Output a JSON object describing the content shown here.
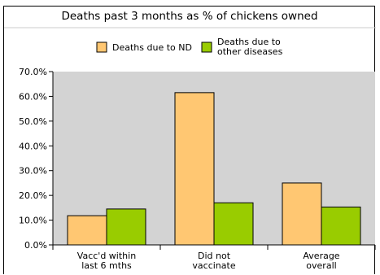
{
  "chart_data": {
    "type": "bar",
    "title": "Deaths past 3 months as % of chickens owned",
    "categories": [
      [
        "Vacc'd within",
        "last 6 mths"
      ],
      [
        "Did not",
        "vaccinate"
      ],
      [
        "Average",
        "overall"
      ]
    ],
    "series": [
      {
        "name": "Deaths due to ND",
        "legend_lines": [
          "Deaths due to ND"
        ],
        "values": [
          11.8,
          61.5,
          25.0
        ],
        "color": "#ffc772"
      },
      {
        "name": "Deaths due to other diseases",
        "legend_lines": [
          "Deaths due to",
          "other diseases"
        ],
        "values": [
          14.5,
          17.0,
          15.3
        ],
        "color": "#99cc00"
      }
    ],
    "ylim": [
      0,
      70
    ],
    "yticks": [
      "0.0%",
      "10.0%",
      "20.0%",
      "30.0%",
      "40.0%",
      "50.0%",
      "60.0%",
      "70.0%"
    ],
    "plot_background": "#d3d3d3",
    "legend_position": "top"
  }
}
